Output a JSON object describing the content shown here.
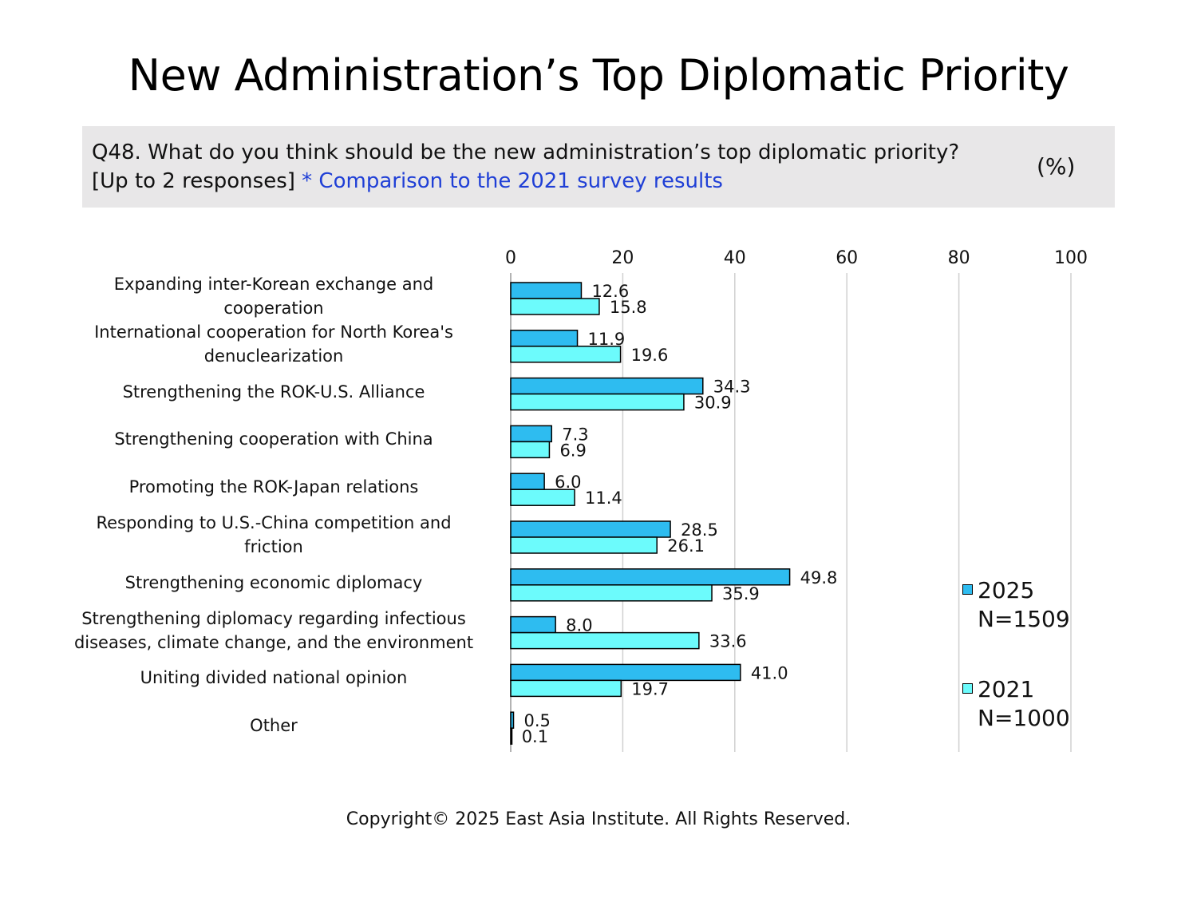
{
  "title": "New Administration’s Top Diplomatic Priority",
  "question": {
    "line1": "Q48. What do you think should be the new administration’s top diplomatic priority?",
    "line2": "[Up to 2 responses]",
    "note": "* Comparison to the 2021 survey results",
    "unit": "(%)"
  },
  "colors": {
    "series_2025": "#2ebcf0",
    "series_2021": "#6cfbfc",
    "gridline": "#d0d0d0",
    "note_text": "#1f3fd6",
    "question_box": "#e8e7e8"
  },
  "legend": [
    {
      "year": "2025",
      "n": "N=1509"
    },
    {
      "year": "2021",
      "n": "N=1000"
    }
  ],
  "chart_data": {
    "type": "bar",
    "orientation": "horizontal",
    "categories": [
      [
        "Expanding inter-Korean exchange and",
        "cooperation"
      ],
      [
        "International cooperation for North Korea's",
        "denuclearization"
      ],
      [
        "Strengthening the ROK-U.S. Alliance"
      ],
      [
        "Strengthening cooperation with China"
      ],
      [
        "Promoting the ROK-Japan relations"
      ],
      [
        "Responding to U.S.-China competition and",
        "friction"
      ],
      [
        "Strengthening economic diplomacy"
      ],
      [
        "Strengthening diplomacy regarding infectious",
        "diseases, climate change, and the environment"
      ],
      [
        "Uniting divided national opinion"
      ],
      [
        "Other"
      ]
    ],
    "series": [
      {
        "name": "2025",
        "values": [
          12.6,
          11.9,
          34.3,
          7.3,
          6.0,
          28.5,
          49.8,
          8.0,
          41.0,
          0.5
        ],
        "labels": [
          "12.6",
          "11.9",
          "34.3",
          "7.3",
          "6.0",
          "28.5",
          "49.8",
          "8.0",
          "41.0",
          "0.5"
        ]
      },
      {
        "name": "2021",
        "values": [
          15.8,
          19.6,
          30.9,
          6.9,
          11.4,
          26.1,
          35.9,
          33.6,
          19.7,
          0.1
        ],
        "labels": [
          "15.8",
          "19.6",
          "30.9",
          "6.9",
          "11.4",
          "26.1",
          "35.9",
          "33.6",
          "19.7",
          "0.1"
        ]
      }
    ],
    "xlim": [
      0,
      100
    ],
    "xticks": [
      "0",
      "20",
      "40",
      "60",
      "80",
      "100"
    ],
    "grid": true,
    "legend_position": "right"
  },
  "copyright": "Copyright© 2025 East Asia Institute. All Rights Reserved."
}
